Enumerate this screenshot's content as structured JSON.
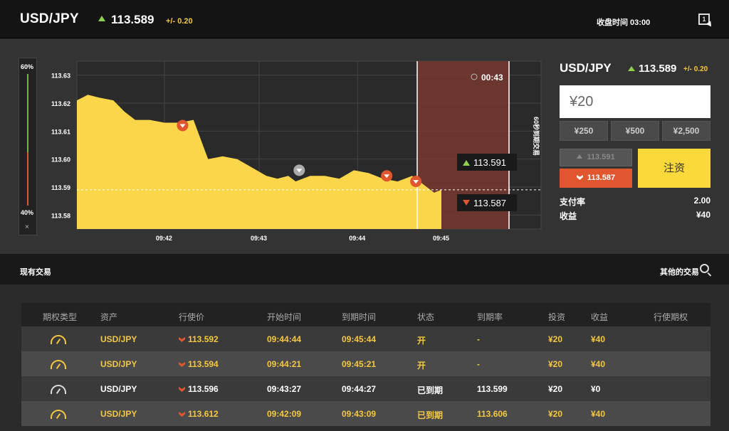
{
  "header": {
    "pair": "USD/JPY",
    "price": "113.589",
    "change": "+/- 0.20",
    "close_time": "收盘时间 03:00",
    "window_icon_label": "1"
  },
  "gauge": {
    "top_label": "60%",
    "bottom_label": "40%",
    "close_label": "×",
    "call_ratio": 0.6
  },
  "chart": {
    "y_ticks": [
      "113.63",
      "113.62",
      "113.61",
      "113.60",
      "113.59",
      "113.58"
    ],
    "x_ticks": [
      "09:42",
      "09:43",
      "09:44",
      "09:45"
    ],
    "countdown": "00:43",
    "deadline_label": "60秒到期交易",
    "call_price": "113.591",
    "put_price": "113.587",
    "colors": {
      "area": "#fbd54a",
      "grid": "#444",
      "expiry_zone": "#7a3a30",
      "call": "#8fd14f",
      "put": "#e0562e"
    }
  },
  "chart_data": {
    "type": "area",
    "ylim": [
      113.575,
      113.635
    ],
    "x": [
      0,
      0.03,
      0.06,
      0.1,
      0.13,
      0.16,
      0.2,
      0.24,
      0.28,
      0.32,
      0.36,
      0.4,
      0.44,
      0.48,
      0.52,
      0.55,
      0.58,
      0.6,
      0.64,
      0.68,
      0.72,
      0.76,
      0.8,
      0.84,
      0.88,
      0.92,
      0.96,
      0.98,
      1
    ],
    "values": [
      113.621,
      113.623,
      113.622,
      113.621,
      113.617,
      113.614,
      113.614,
      113.613,
      113.613,
      113.614,
      113.6,
      113.601,
      113.6,
      113.597,
      113.594,
      113.593,
      113.594,
      113.592,
      113.594,
      113.594,
      113.593,
      113.596,
      113.595,
      113.593,
      113.592,
      113.594,
      113.59,
      113.588,
      113.589
    ],
    "x_labels": [
      "09:42",
      "09:43",
      "09:44",
      "09:45"
    ]
  },
  "trade_panel": {
    "pair": "USD/JPY",
    "price": "113.589",
    "change": "+/- 0.20",
    "amount_value": "¥20",
    "presets": [
      "¥250",
      "¥500",
      "¥2,500"
    ],
    "call_label": "113.591",
    "put_label": "113.587",
    "invest_label": "注资",
    "payout_label": "支付率",
    "payout_value": "2.00",
    "profit_label": "收益",
    "profit_value": "¥40"
  },
  "trades": {
    "title": "现有交易",
    "other_label": "其他的交易",
    "columns": [
      "期权类型",
      "资产",
      "行使价",
      "开始时间",
      "到期时间",
      "状态",
      "到期率",
      "投资",
      "收益",
      "行使期权"
    ],
    "rows": [
      {
        "asset": "USD/JPY",
        "strike": "113.592",
        "start": "09:44:44",
        "expiry": "09:45:44",
        "status": "开",
        "rate": "-",
        "invest": "¥20",
        "profit": "¥40"
      },
      {
        "asset": "USD/JPY",
        "strike": "113.594",
        "start": "09:44:21",
        "expiry": "09:45:21",
        "status": "开",
        "rate": "-",
        "invest": "¥20",
        "profit": "¥40"
      },
      {
        "asset": "USD/JPY",
        "strike": "113.596",
        "start": "09:43:27",
        "expiry": "09:44:27",
        "status": "已到期",
        "rate": "113.599",
        "invest": "¥20",
        "profit": "¥0"
      },
      {
        "asset": "USD/JPY",
        "strike": "113.612",
        "start": "09:42:09",
        "expiry": "09:43:09",
        "status": "已到期",
        "rate": "113.606",
        "invest": "¥20",
        "profit": "¥40"
      }
    ]
  }
}
